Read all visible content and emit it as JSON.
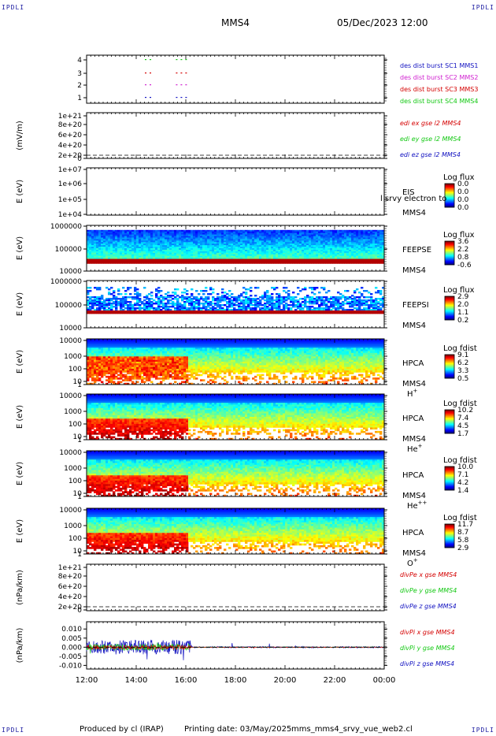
{
  "header": {
    "corner_tl": "IPDLI",
    "corner_tr": "IPDLI",
    "corner_bl": "IPDLI",
    "corner_br": "IPDLI",
    "spacecraft": "MMS4",
    "datetime": "05/Dec/2023 12:00"
  },
  "footer": {
    "produced_by": "Produced by cl (IRAP)",
    "printing_date": "Printing date: 03/May/2025",
    "file": "mms_mms4_srvy_vue_web2.cl"
  },
  "colors": {
    "red": "#d40000",
    "green": "#12c812",
    "blue": "#1010c0",
    "magenta": "#d020d0",
    "black": "#000000"
  },
  "chart_data": [
    {
      "type": "scatter",
      "id": "burst",
      "ylabel": "",
      "ylim": [
        0.5,
        4.3
      ],
      "yticks": [
        "4",
        "3",
        "2",
        "1"
      ],
      "legend": [
        {
          "label": "des dist burst SC1 MMS1",
          "color": "#1010c0"
        },
        {
          "label": "des dist burst SC2 MMS2",
          "color": "#d020d0"
        },
        {
          "label": "des dist burst SC3 MMS3",
          "color": "#d40000"
        },
        {
          "label": "des dist burst SC4 MMS4",
          "color": "#12c812"
        }
      ],
      "segments": [
        {
          "sc": 4,
          "x": [
            14.35,
            14.55
          ],
          "color": "#12c812"
        },
        {
          "sc": 4,
          "x": [
            15.6,
            16.15
          ],
          "color": "#12c812"
        },
        {
          "sc": 3,
          "x": [
            14.35,
            14.55
          ],
          "color": "#d40000"
        },
        {
          "sc": 3,
          "x": [
            15.6,
            16.15
          ],
          "color": "#d40000"
        },
        {
          "sc": 2,
          "x": [
            14.35,
            14.55
          ],
          "color": "#d020d0"
        },
        {
          "sc": 2,
          "x": [
            15.6,
            16.15
          ],
          "color": "#d020d0"
        },
        {
          "sc": 1,
          "x": [
            14.35,
            14.55
          ],
          "color": "#1010c0"
        },
        {
          "sc": 1,
          "x": [
            15.6,
            16.15
          ],
          "color": "#1010c0"
        }
      ]
    },
    {
      "type": "line",
      "id": "edi",
      "ylabel": "(mV/m)",
      "yticks": [
        "1e+21",
        "8e+20",
        "6e+20",
        "4e+20",
        "2e+20",
        "0"
      ],
      "legend": [
        {
          "label": "edi ex gse l2 MMS4",
          "color": "#d40000"
        },
        {
          "label": "edi ey gse l2 MMS4",
          "color": "#12c812"
        },
        {
          "label": "edi ez gse l2 MMS4",
          "color": "#1010c0"
        }
      ]
    },
    {
      "type": "heatmap",
      "id": "eis",
      "ylabel": "E (eV)",
      "yscale": "log",
      "yticks": [
        "1e+07",
        "1e+06",
        "1e+05",
        "1e+04"
      ],
      "instrument": "EIS",
      "spacecraft": "MMS4",
      "overlay_label": "l srvy electron to",
      "colorbar_title": "Log flux",
      "colorbar_ticks": [
        "0.0",
        "0.0",
        "0.0",
        "0.0"
      ]
    },
    {
      "type": "heatmap",
      "id": "feepse",
      "ylabel": "E (eV)",
      "yscale": "log",
      "yticks": [
        "1000000",
        "100000",
        "10000"
      ],
      "instrument": "FEEPSE",
      "spacecraft": "MMS4",
      "colorbar_title": "Log flux",
      "colorbar_ticks": [
        "3.6",
        "2.2",
        "0.8",
        "-0.6"
      ]
    },
    {
      "type": "heatmap",
      "id": "feepsi",
      "ylabel": "E (eV)",
      "yscale": "log",
      "yticks": [
        "1000000",
        "100000",
        "10000"
      ],
      "instrument": "FEEPSI",
      "spacecraft": "MMS4",
      "colorbar_title": "Log flux",
      "colorbar_ticks": [
        "2.9",
        "2.0",
        "1.1",
        "0.2"
      ]
    },
    {
      "type": "heatmap",
      "id": "hpca_h",
      "ylabel": "E (eV)",
      "yscale": "log",
      "yticks": [
        "10000",
        "1000",
        "100",
        "10",
        "1"
      ],
      "instrument": "HPCA",
      "spacecraft": "MMS4",
      "species": "H",
      "species_sup": "+",
      "colorbar_title": "Log fdist",
      "colorbar_ticks": [
        "9.1",
        "6.2",
        "3.3",
        "0.5"
      ]
    },
    {
      "type": "heatmap",
      "id": "hpca_he",
      "ylabel": "E (eV)",
      "yscale": "log",
      "yticks": [
        "10000",
        "1000",
        "100",
        "10",
        "1"
      ],
      "instrument": "HPCA",
      "spacecraft": "MMS4",
      "species": "He",
      "species_sup": "+",
      "colorbar_title": "Log fdist",
      "colorbar_ticks": [
        "10.2",
        "7.4",
        "4.5",
        "1.7"
      ]
    },
    {
      "type": "heatmap",
      "id": "hpca_hepp",
      "ylabel": "E (eV)",
      "yscale": "log",
      "yticks": [
        "10000",
        "1000",
        "100",
        "10",
        "1"
      ],
      "instrument": "HPCA",
      "spacecraft": "MMS4",
      "species": "He",
      "species_sup": "++",
      "colorbar_title": "Log fdist",
      "colorbar_ticks": [
        "10.0",
        "7.1",
        "4.2",
        "1.4"
      ]
    },
    {
      "type": "heatmap",
      "id": "hpca_o",
      "ylabel": "E (eV)",
      "yscale": "log",
      "yticks": [
        "10000",
        "1000",
        "100",
        "10",
        "1"
      ],
      "instrument": "HPCA",
      "spacecraft": "MMS4",
      "species": "O",
      "species_sup": "+",
      "colorbar_title": "Log fdist",
      "colorbar_ticks": [
        "11.7",
        "8.7",
        "5.8",
        "2.9"
      ]
    },
    {
      "type": "line",
      "id": "divpe",
      "ylabel": "(nPa/km)",
      "yticks": [
        "1e+21",
        "8e+20",
        "6e+20",
        "4e+20",
        "2e+20",
        "0"
      ],
      "legend": [
        {
          "label": "divPe x gse MMS4",
          "color": "#d40000"
        },
        {
          "label": "divPe y gse MMS4",
          "color": "#12c812"
        },
        {
          "label": "divPe z gse MMS4",
          "color": "#1010c0"
        }
      ]
    },
    {
      "type": "line",
      "id": "divpi",
      "ylabel": "(nPa/km)",
      "ylim": [
        -0.012,
        0.014
      ],
      "yticks": [
        "0.010",
        "0.005",
        "0.000",
        "-0.005",
        "-0.010"
      ],
      "yticks_values": [
        0.01,
        0.005,
        0.0,
        -0.005,
        -0.01
      ],
      "legend": [
        {
          "label": "divPi x gse MMS4",
          "color": "#d40000"
        },
        {
          "label": "divPi y gse MMS4",
          "color": "#12c812"
        },
        {
          "label": "divPi z gse MMS4",
          "color": "#1010c0"
        }
      ],
      "noisy_interval_hours": [
        12.0,
        16.2
      ],
      "noisy_amplitude": 0.004,
      "quiet_amplitude": 0.0004
    }
  ],
  "xaxis": {
    "range_hours": [
      12,
      24
    ],
    "ticks": [
      "12:00",
      "14:00",
      "16:00",
      "18:00",
      "20:00",
      "22:00",
      "00:00"
    ],
    "tick_values_hours": [
      12,
      14,
      16,
      18,
      20,
      22,
      24
    ]
  }
}
